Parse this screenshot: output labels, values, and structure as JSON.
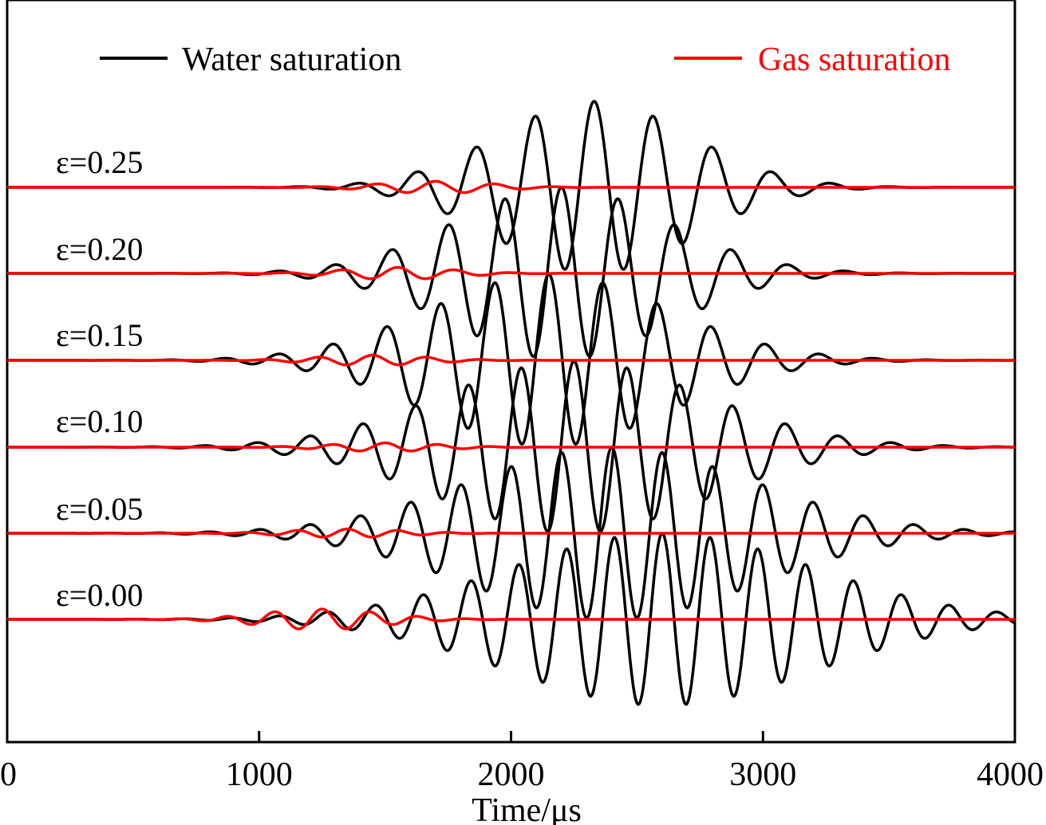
{
  "chart_data": {
    "type": "line",
    "title": "",
    "xlabel": "Time/μs",
    "ylabel": "",
    "xlim": [
      0,
      4000
    ],
    "xticks": [
      0,
      1000,
      2000,
      3000,
      4000
    ],
    "xtick_labels": [
      "0",
      "1000",
      "2000",
      "3000",
      "4000"
    ],
    "grid": false,
    "legend": {
      "placement": "top",
      "entries": [
        {
          "name": "Water saturation",
          "color": "#000000"
        },
        {
          "name": "Gas saturation",
          "color": "#ff0000"
        }
      ]
    },
    "trace_labels": [
      "ε=0.25",
      "ε=0.20",
      "ε=0.15",
      "ε=0.10",
      "ε=0.05",
      "ε=0.00"
    ],
    "traces": [
      {
        "label": "ε=0.25",
        "epsilon": 0.25,
        "water": {
          "center": 2330,
          "sigma": 380,
          "period": 235,
          "amplitude": 1.0
        },
        "gas": {
          "center": 1700,
          "sigma": 220,
          "period": 235,
          "amplitude": 0.07
        }
      },
      {
        "label": "ε=0.20",
        "epsilon": 0.2,
        "water": {
          "center": 2200,
          "sigma": 420,
          "period": 225,
          "amplitude": 1.0
        },
        "gas": {
          "center": 1550,
          "sigma": 220,
          "period": 225,
          "amplitude": 0.07
        }
      },
      {
        "label": "ε=0.15",
        "epsilon": 0.15,
        "water": {
          "center": 2150,
          "sigma": 470,
          "period": 215,
          "amplitude": 1.0
        },
        "gas": {
          "center": 1450,
          "sigma": 220,
          "period": 215,
          "amplitude": 0.06
        }
      },
      {
        "label": "ε=0.10",
        "epsilon": 0.1,
        "water": {
          "center": 2250,
          "sigma": 520,
          "period": 210,
          "amplitude": 1.0
        },
        "gas": {
          "center": 1500,
          "sigma": 220,
          "period": 210,
          "amplitude": 0.05
        }
      },
      {
        "label": "ε=0.05",
        "epsilon": 0.05,
        "water": {
          "center": 2400,
          "sigma": 560,
          "period": 200,
          "amplitude": 1.0
        },
        "gas": {
          "center": 1350,
          "sigma": 220,
          "period": 200,
          "amplitude": 0.05
        }
      },
      {
        "label": "ε=0.00",
        "epsilon": 0.0,
        "water": {
          "center": 2600,
          "sigma": 600,
          "period": 190,
          "amplitude": 1.0
        },
        "gas": {
          "center": 1250,
          "sigma": 240,
          "period": 190,
          "amplitude": 0.12
        }
      }
    ]
  },
  "colors": {
    "water": "#000000",
    "gas": "#ff0000",
    "axes": "#000000",
    "background": "#ffffff"
  }
}
